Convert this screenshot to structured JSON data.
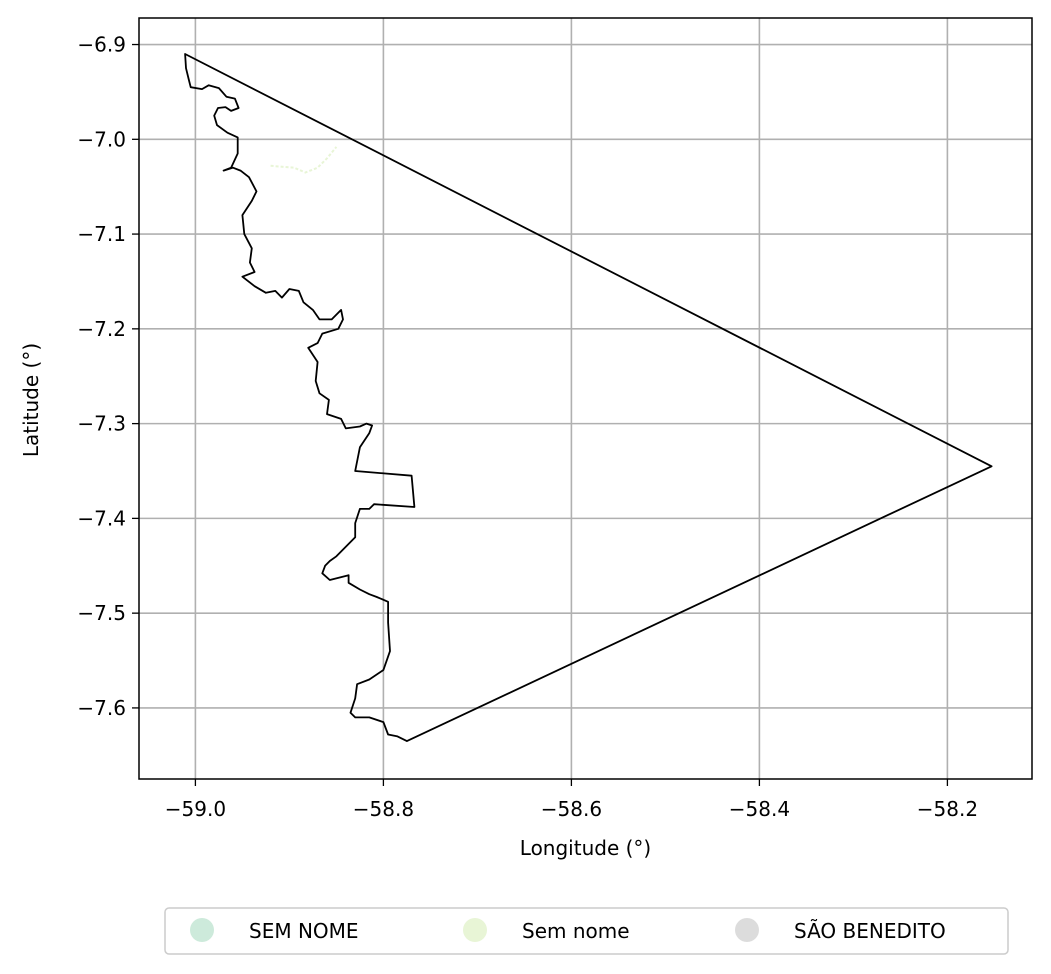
{
  "chart_data": {
    "type": "map",
    "xlabel": "Longitude (°)",
    "ylabel": "Latitude (°)",
    "xlim": [
      -59.06,
      -58.11
    ],
    "ylim": [
      -7.675,
      -6.872
    ],
    "grid": true,
    "x_ticks": [
      -59.0,
      -58.8,
      -58.6,
      -58.4,
      -58.2
    ],
    "x_tick_labels": [
      "−59.0",
      "−58.8",
      "−58.6",
      "−58.4",
      "−58.2"
    ],
    "y_ticks": [
      -6.9,
      -7.0,
      -7.1,
      -7.2,
      -7.3,
      -7.4,
      -7.5,
      -7.6
    ],
    "y_tick_labels": [
      "−6.9",
      "−7.0",
      "−7.1",
      "−7.2",
      "−7.3",
      "−7.4",
      "−7.5",
      "−7.6"
    ],
    "legend_position": "bottom-center",
    "legend": [
      {
        "label": "SEM NOME",
        "color": "#cdeadb"
      },
      {
        "label": "Sem nome",
        "color": "#e8f5d6"
      },
      {
        "label": "SÃO BENEDITO",
        "color": "#dcdcdc"
      }
    ],
    "outline_color": "#000000",
    "boundary": [
      [
        -59.011,
        -6.91
      ],
      [
        -59.01,
        -6.925
      ],
      [
        -59.007,
        -6.937
      ],
      [
        -59.005,
        -6.945
      ],
      [
        -58.993,
        -6.947
      ],
      [
        -58.986,
        -6.943
      ],
      [
        -58.975,
        -6.946
      ],
      [
        -58.967,
        -6.955
      ],
      [
        -58.958,
        -6.957
      ],
      [
        -58.954,
        -6.967
      ],
      [
        -58.962,
        -6.97
      ],
      [
        -58.968,
        -6.966
      ],
      [
        -58.976,
        -6.967
      ],
      [
        -58.98,
        -6.975
      ],
      [
        -58.977,
        -6.985
      ],
      [
        -58.966,
        -6.993
      ],
      [
        -58.955,
        -6.998
      ],
      [
        -58.955,
        -7.015
      ],
      [
        -58.962,
        -7.03
      ],
      [
        -58.97,
        -7.033
      ],
      [
        -58.96,
        -7.03
      ],
      [
        -58.952,
        -7.033
      ],
      [
        -58.943,
        -7.04
      ],
      [
        -58.935,
        -7.055
      ],
      [
        -58.94,
        -7.065
      ],
      [
        -58.95,
        -7.08
      ],
      [
        -58.948,
        -7.1
      ],
      [
        -58.94,
        -7.115
      ],
      [
        -58.942,
        -7.13
      ],
      [
        -58.937,
        -7.14
      ],
      [
        -58.95,
        -7.145
      ],
      [
        -58.937,
        -7.155
      ],
      [
        -58.925,
        -7.162
      ],
      [
        -58.915,
        -7.16
      ],
      [
        -58.908,
        -7.167
      ],
      [
        -58.9,
        -7.158
      ],
      [
        -58.89,
        -7.16
      ],
      [
        -58.885,
        -7.172
      ],
      [
        -58.875,
        -7.18
      ],
      [
        -58.868,
        -7.19
      ],
      [
        -58.855,
        -7.19
      ],
      [
        -58.845,
        -7.18
      ],
      [
        -58.843,
        -7.19
      ],
      [
        -58.848,
        -7.2
      ],
      [
        -58.865,
        -7.205
      ],
      [
        -58.87,
        -7.215
      ],
      [
        -58.88,
        -7.22
      ],
      [
        -58.87,
        -7.235
      ],
      [
        -58.872,
        -7.255
      ],
      [
        -58.868,
        -7.268
      ],
      [
        -58.858,
        -7.275
      ],
      [
        -58.86,
        -7.29
      ],
      [
        -58.845,
        -7.295
      ],
      [
        -58.84,
        -7.305
      ],
      [
        -58.825,
        -7.303
      ],
      [
        -58.818,
        -7.3
      ],
      [
        -58.812,
        -7.302
      ],
      [
        -58.815,
        -7.31
      ],
      [
        -58.825,
        -7.325
      ],
      [
        -58.83,
        -7.35
      ],
      [
        -58.77,
        -7.355
      ],
      [
        -58.767,
        -7.388
      ],
      [
        -58.81,
        -7.385
      ],
      [
        -58.815,
        -7.39
      ],
      [
        -58.825,
        -7.39
      ],
      [
        -58.83,
        -7.405
      ],
      [
        -58.83,
        -7.42
      ],
      [
        -58.84,
        -7.43
      ],
      [
        -58.85,
        -7.44
      ],
      [
        -58.857,
        -7.445
      ],
      [
        -58.862,
        -7.45
      ],
      [
        -58.865,
        -7.458
      ],
      [
        -58.857,
        -7.465
      ],
      [
        -58.837,
        -7.46
      ],
      [
        -58.837,
        -7.468
      ],
      [
        -58.825,
        -7.475
      ],
      [
        -58.815,
        -7.48
      ],
      [
        -58.807,
        -7.483
      ],
      [
        -58.795,
        -7.488
      ],
      [
        -58.795,
        -7.51
      ],
      [
        -58.793,
        -7.54
      ],
      [
        -58.8,
        -7.56
      ],
      [
        -58.815,
        -7.57
      ],
      [
        -58.828,
        -7.575
      ],
      [
        -58.83,
        -7.59
      ],
      [
        -58.835,
        -7.605
      ],
      [
        -58.83,
        -7.61
      ],
      [
        -58.815,
        -7.61
      ],
      [
        -58.8,
        -7.615
      ],
      [
        -58.795,
        -7.628
      ],
      [
        -58.785,
        -7.63
      ],
      [
        -58.775,
        -7.635
      ],
      [
        -58.153,
        -7.345
      ],
      [
        -59.011,
        -6.91
      ]
    ],
    "small_feature": [
      [
        -58.92,
        -7.028
      ],
      [
        -58.895,
        -7.03
      ],
      [
        -58.883,
        -7.035
      ],
      [
        -58.87,
        -7.03
      ],
      [
        -58.86,
        -7.02
      ],
      [
        -58.85,
        -7.008
      ]
    ]
  }
}
